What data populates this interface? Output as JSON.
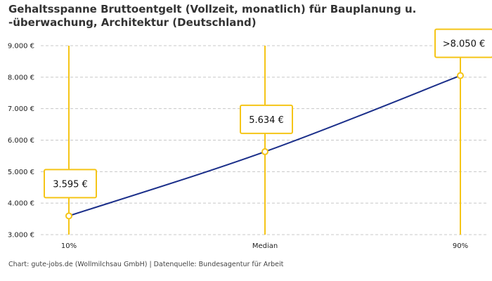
{
  "chart_data": {
    "type": "line",
    "title": "Gehaltsspanne Bruttoentgelt (Vollzeit, monatlich) für Bauplanung u. -überwachung, Architektur (Deutschland)",
    "categories": [
      "10%",
      "Median",
      "90%"
    ],
    "values": [
      3595,
      5634,
      8050
    ],
    "data_labels": [
      "3.595 €",
      "5.634 €",
      ">8.050 €"
    ],
    "ylim": [
      3000,
      9000
    ],
    "yticks": [
      3000,
      4000,
      5000,
      6000,
      7000,
      8000,
      9000
    ],
    "ytick_labels": [
      "3.000 €",
      "4.000 €",
      "5.000 €",
      "6.000 €",
      "7.000 €",
      "8.000 €",
      "9.000 €"
    ],
    "grid": true,
    "colors": {
      "line": "#1b2f8a",
      "accent": "#f5c518",
      "grid": "#c8c8c8"
    }
  },
  "footer": "Chart: gute-jobs.de (Wollmilchsau GmbH) | Datenquelle: Bundesagentur für Arbeit"
}
